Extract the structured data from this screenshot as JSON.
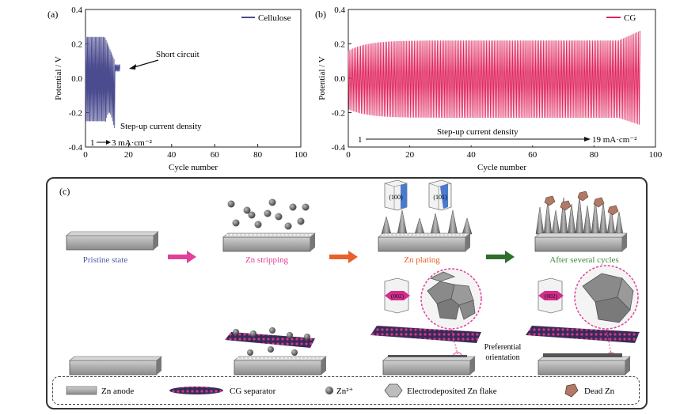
{
  "panel_a": {
    "label": "(a)",
    "legend": "Cellulose",
    "ylabel": "Potential / V",
    "xlabel": "Cycle number",
    "xticks": [
      "0",
      "20",
      "40",
      "60",
      "80",
      "100"
    ],
    "yticks": [
      "0.4",
      "0.2",
      "0.0",
      "-0.2",
      "-0.4"
    ],
    "annot_short": "Short circuit",
    "annot_step": "Step-up current density",
    "annot_start": "1",
    "annot_end": "3 mA·cm⁻²",
    "color": "#4b4b8f"
  },
  "panel_b": {
    "label": "(b)",
    "legend": "CG",
    "ylabel": "Potential / V",
    "xlabel": "Cycle number",
    "xticks": [
      "0",
      "20",
      "40",
      "60",
      "80",
      "100"
    ],
    "yticks": [
      "0.4",
      "0.2",
      "0.0",
      "-0.2",
      "-0.4"
    ],
    "annot_step": "Step-up current density",
    "annot_start": "1",
    "annot_end": "19 mA·cm⁻²",
    "color": "#e0245e"
  },
  "chart_data": [
    {
      "type": "line",
      "xlabel": "Cycle number",
      "ylabel": "Potential / V",
      "xlim": [
        0,
        100
      ],
      "ylim": [
        -0.4,
        0.4
      ],
      "series": [
        {
          "name": "Cellulose",
          "x_range": [
            0,
            16
          ],
          "upper": 0.24,
          "lower": -0.25,
          "short_circuit_cycle": 14,
          "short_circuit_potential": 0.07
        }
      ],
      "annotations": [
        "Short circuit",
        "Step-up current density",
        "1",
        "3 mA·cm⁻²"
      ]
    },
    {
      "type": "line",
      "xlabel": "Cycle number",
      "ylabel": "Potential / V",
      "xlim": [
        0,
        100
      ],
      "ylim": [
        -0.4,
        0.4
      ],
      "series": [
        {
          "name": "CG",
          "x_range": [
            0,
            95
          ],
          "upper": 0.22,
          "lower": -0.23
        }
      ],
      "annotations": [
        "Step-up current density",
        "1",
        "19 mA·cm⁻²"
      ]
    }
  ],
  "panel_c": {
    "label": "(c)",
    "stage1": "Pristine state",
    "stage2": "Zn stripping",
    "stage3": "Zn plating",
    "stage4": "After several cycles",
    "facet_100": "(100)",
    "facet_101": "(101)",
    "facet_002a": "(002)",
    "facet_002b": "(002)",
    "preferential": "Preferential",
    "orientation": "orientation",
    "stage1_color": "#4b5aa8",
    "stage2_color": "#e0409a",
    "stage3_color": "#e8602a",
    "stage4_color": "#3c8a3c"
  },
  "legend_c": {
    "zn_anode": "Zn anode",
    "cg_separator": "CG separator",
    "zn_ion": "Zn²⁺",
    "flake": "Electrodeposited Zn flake",
    "dead_zn": "Dead Zn"
  }
}
